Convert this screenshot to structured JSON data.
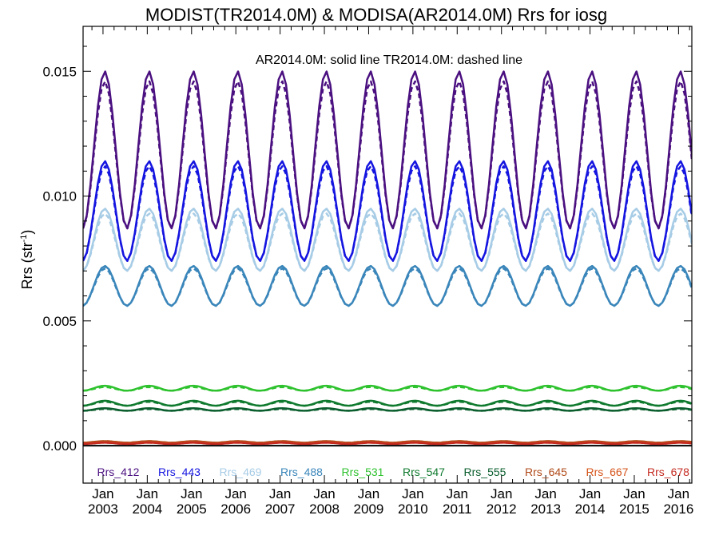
{
  "chart_data": {
    "type": "line",
    "title": "MODIST(TR2014.0M) & MODISA(AR2014.0M)  Rrs for iosg",
    "subtitle": "AR2014.0M: solid line   TR2014.0M: dashed line",
    "xlabel": "",
    "ylabel": "Rrs (str",
    "ylabel_sup": "-1",
    "ylabel_close": ")",
    "xlim": [
      2002.55,
      2016.3
    ],
    "ylim": [
      -0.0015,
      0.0168
    ],
    "yticks": [
      0.0,
      0.005,
      0.01,
      0.015
    ],
    "ytick_labels": [
      "0.000",
      "0.005",
      "0.010",
      "0.015"
    ],
    "xticks": [
      {
        "x": 2003,
        "top": "Jan",
        "bottom": "2003"
      },
      {
        "x": 2004,
        "top": "Jan",
        "bottom": "2004"
      },
      {
        "x": 2005,
        "top": "Jan",
        "bottom": "2005"
      },
      {
        "x": 2006,
        "top": "Jan",
        "bottom": "2006"
      },
      {
        "x": 2007,
        "top": "Jan",
        "bottom": "2007"
      },
      {
        "x": 2008,
        "top": "Jan",
        "bottom": "2008"
      },
      {
        "x": 2009,
        "top": "Jan",
        "bottom": "2009"
      },
      {
        "x": 2010,
        "top": "Jan",
        "bottom": "2010"
      },
      {
        "x": 2011,
        "top": "Jan",
        "bottom": "2011"
      },
      {
        "x": 2012,
        "top": "Jan",
        "bottom": "2012"
      },
      {
        "x": 2013,
        "top": "Jan",
        "bottom": "2013"
      },
      {
        "x": 2014,
        "top": "Jan",
        "bottom": "2014"
      },
      {
        "x": 2015,
        "top": "Jan",
        "bottom": "2015"
      },
      {
        "x": 2016,
        "top": "Jan",
        "bottom": "2016"
      }
    ],
    "x_start": 2002.55,
    "x_step": 0.0833333,
    "line_styles": {
      "AR2014.0M": "solid",
      "TR2014.0M": "dashed"
    },
    "series": [
      {
        "name": "Rrs_412",
        "color": "#4b1080",
        "min": 0.0087,
        "max": 0.015,
        "phase": 0.0,
        "dash_offset": -0.0004
      },
      {
        "name": "Rrs_443",
        "color": "#1515e0",
        "min": 0.0074,
        "max": 0.0114,
        "phase": 0.0,
        "dash_offset": -0.0002
      },
      {
        "name": "Rrs_469",
        "color": "#a7cce6",
        "min": 0.007,
        "max": 0.0095,
        "phase": 0.0,
        "dash_offset": -0.0002
      },
      {
        "name": "Rrs_488",
        "color": "#3a86ba",
        "min": 0.0056,
        "max": 0.0072,
        "phase": 0.0,
        "dash_offset": -0.0001
      },
      {
        "name": "Rrs_531",
        "color": "#2ec22e",
        "min": 0.0022,
        "max": 0.0024,
        "phase": 0.0,
        "dash_offset": -5e-05
      },
      {
        "name": "Rrs_547",
        "color": "#0f7a2e",
        "min": 0.0016,
        "max": 0.0018,
        "phase": 0.0,
        "dash_offset": -4e-05
      },
      {
        "name": "Rrs_555",
        "color": "#0b5e2e",
        "min": 0.0014,
        "max": 0.0015,
        "phase": 0.0,
        "dash_offset": -3e-05
      },
      {
        "name": "Rrs_645",
        "color": "#b04a18",
        "min": 0.00012,
        "max": 0.00018,
        "phase": 0.0,
        "dash_offset": 0.0
      },
      {
        "name": "Rrs_667",
        "color": "#d6541a",
        "min": 8e-05,
        "max": 0.00013,
        "phase": 0.0,
        "dash_offset": 0.0
      },
      {
        "name": "Rrs_678",
        "color": "#c42a20",
        "min": 7e-05,
        "max": 0.00012,
        "phase": 0.0,
        "dash_offset": 0.0
      }
    ]
  }
}
